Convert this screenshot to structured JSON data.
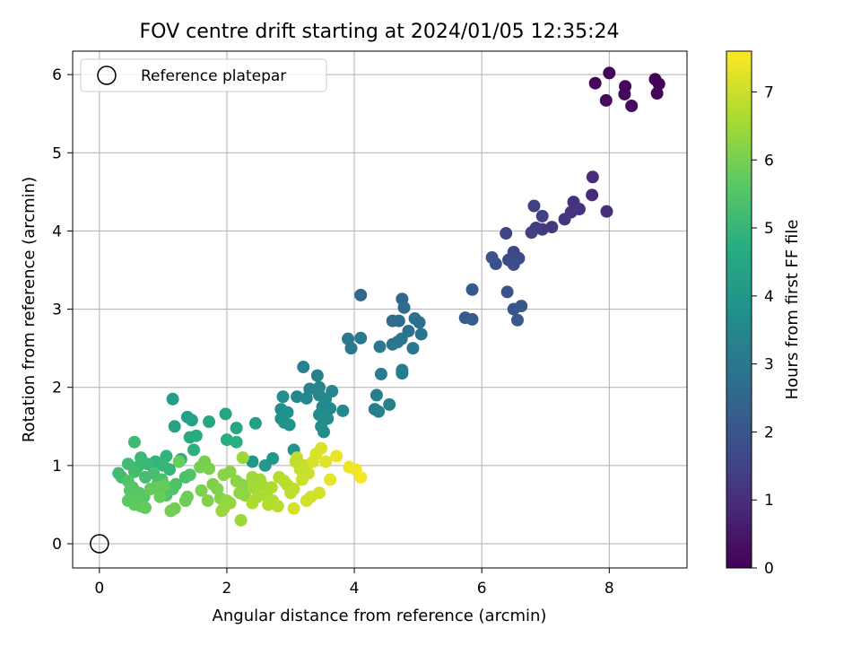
{
  "chart_data": {
    "type": "scatter",
    "title": "FOV centre drift starting at 2024/01/05 12:35:24",
    "xlabel": "Angular distance from reference (arcmin)",
    "ylabel": "Rotation from reference (arcmin)",
    "xlim": [
      -0.42,
      9.22
    ],
    "ylim": [
      -0.31,
      6.3
    ],
    "xticks": [
      0,
      2,
      4,
      6,
      8
    ],
    "yticks": [
      0,
      1,
      2,
      3,
      4,
      5,
      6
    ],
    "grid": true,
    "legend": {
      "placement": "top-left",
      "entries": [
        "Reference platepar"
      ]
    },
    "reference": {
      "x": 0,
      "y": 0
    },
    "colorbar": {
      "label": "Hours from first FF file",
      "colormap": "viridis",
      "range": [
        0,
        7.6
      ],
      "ticks": [
        0,
        1,
        2,
        3,
        4,
        5,
        6,
        7
      ]
    },
    "points": [
      [
        8.72,
        5.94,
        0.05
      ],
      [
        8.78,
        5.88,
        0.05
      ],
      [
        8.75,
        5.76,
        0.1
      ],
      [
        8.0,
        6.02,
        0.1
      ],
      [
        7.78,
        5.89,
        0.12
      ],
      [
        8.25,
        5.85,
        0.15
      ],
      [
        8.24,
        5.75,
        0.18
      ],
      [
        7.95,
        5.67,
        0.2
      ],
      [
        8.35,
        5.6,
        0.25
      ],
      [
        7.74,
        4.69,
        0.9
      ],
      [
        7.73,
        4.46,
        0.95
      ],
      [
        7.96,
        4.25,
        1.0
      ],
      [
        7.44,
        4.37,
        1.05
      ],
      [
        7.53,
        4.28,
        1.1
      ],
      [
        7.4,
        4.24,
        1.15
      ],
      [
        7.3,
        4.15,
        1.2
      ],
      [
        7.1,
        4.05,
        1.25
      ],
      [
        6.95,
        4.02,
        1.3
      ],
      [
        6.85,
        4.04,
        1.35
      ],
      [
        6.78,
        3.98,
        1.4
      ],
      [
        6.82,
        4.32,
        1.45
      ],
      [
        6.95,
        4.19,
        1.5
      ],
      [
        6.38,
        3.97,
        1.6
      ],
      [
        6.5,
        3.73,
        1.65
      ],
      [
        6.58,
        3.65,
        1.7
      ],
      [
        6.42,
        3.63,
        1.75
      ],
      [
        6.5,
        3.57,
        1.8
      ],
      [
        6.22,
        3.58,
        1.85
      ],
      [
        6.16,
        3.66,
        1.9
      ],
      [
        6.4,
        3.22,
        1.95
      ],
      [
        6.5,
        3.0,
        2.0
      ],
      [
        6.62,
        3.04,
        2.05
      ],
      [
        6.56,
        2.86,
        2.1
      ],
      [
        5.85,
        3.25,
        2.15
      ],
      [
        5.74,
        2.89,
        2.2
      ],
      [
        5.85,
        2.87,
        2.25
      ],
      [
        4.1,
        3.18,
        2.5
      ],
      [
        4.75,
        3.13,
        2.55
      ],
      [
        4.78,
        3.02,
        2.6
      ],
      [
        4.6,
        2.85,
        2.65
      ],
      [
        4.7,
        2.85,
        2.7
      ],
      [
        4.95,
        2.88,
        2.75
      ],
      [
        5.02,
        2.83,
        2.8
      ],
      [
        4.85,
        2.72,
        2.85
      ],
      [
        5.05,
        2.68,
        2.9
      ],
      [
        4.74,
        2.62,
        2.9
      ],
      [
        4.6,
        2.55,
        2.95
      ],
      [
        4.68,
        2.58,
        3.0
      ],
      [
        4.92,
        2.5,
        3.0
      ],
      [
        4.4,
        2.52,
        3.05
      ],
      [
        3.9,
        2.62,
        3.05
      ],
      [
        4.1,
        2.63,
        3.1
      ],
      [
        3.95,
        2.5,
        3.1
      ],
      [
        4.42,
        2.17,
        3.15
      ],
      [
        4.75,
        2.22,
        3.15
      ],
      [
        4.75,
        2.18,
        3.2
      ],
      [
        4.35,
        1.9,
        3.2
      ],
      [
        4.55,
        1.78,
        3.25
      ],
      [
        4.32,
        1.72,
        3.25
      ],
      [
        4.38,
        1.69,
        3.3
      ],
      [
        3.42,
        2.15,
        3.35
      ],
      [
        3.2,
        2.26,
        3.35
      ],
      [
        3.3,
        1.98,
        3.4
      ],
      [
        3.45,
        2.0,
        3.4
      ],
      [
        3.65,
        1.95,
        3.45
      ],
      [
        3.45,
        1.9,
        3.45
      ],
      [
        3.1,
        1.88,
        3.5
      ],
      [
        3.25,
        1.86,
        3.5
      ],
      [
        3.55,
        1.85,
        3.55
      ],
      [
        3.5,
        1.75,
        3.55
      ],
      [
        3.62,
        1.73,
        3.6
      ],
      [
        3.82,
        1.7,
        3.6
      ],
      [
        3.45,
        1.65,
        3.65
      ],
      [
        3.58,
        1.6,
        3.65
      ],
      [
        3.48,
        1.5,
        3.7
      ],
      [
        3.52,
        1.43,
        3.7
      ],
      [
        2.88,
        1.88,
        3.75
      ],
      [
        2.85,
        1.72,
        3.75
      ],
      [
        2.95,
        1.68,
        3.8
      ],
      [
        2.85,
        1.6,
        3.8
      ],
      [
        2.9,
        1.55,
        3.85
      ],
      [
        2.98,
        1.52,
        3.85
      ],
      [
        3.05,
        1.2,
        3.9
      ],
      [
        2.72,
        1.09,
        3.95
      ],
      [
        2.4,
        1.05,
        4.0
      ],
      [
        2.6,
        1.0,
        4.05
      ],
      [
        1.15,
        1.85,
        4.2
      ],
      [
        2.45,
        1.54,
        4.25
      ],
      [
        1.38,
        1.62,
        4.3
      ],
      [
        1.45,
        1.58,
        4.35
      ],
      [
        1.18,
        1.5,
        4.4
      ],
      [
        1.98,
        1.66,
        4.45
      ],
      [
        2.15,
        1.48,
        4.5
      ],
      [
        1.72,
        1.56,
        4.55
      ],
      [
        1.42,
        1.36,
        4.6
      ],
      [
        1.52,
        1.38,
        4.65
      ],
      [
        2.0,
        1.33,
        4.7
      ],
      [
        2.15,
        1.3,
        4.75
      ],
      [
        1.28,
        1.08,
        4.8
      ],
      [
        1.48,
        1.2,
        4.85
      ],
      [
        1.05,
        1.12,
        4.9
      ],
      [
        0.88,
        1.05,
        4.95
      ],
      [
        1.0,
        1.0,
        5.0
      ],
      [
        1.1,
        0.95,
        5.0
      ],
      [
        0.75,
        1.02,
        5.05
      ],
      [
        0.6,
        0.98,
        5.1
      ],
      [
        0.65,
        1.1,
        5.1
      ],
      [
        0.55,
        1.3,
        5.15
      ],
      [
        0.45,
        1.02,
        5.2
      ],
      [
        0.3,
        0.9,
        5.2
      ],
      [
        0.35,
        0.85,
        5.25
      ],
      [
        0.55,
        0.92,
        5.25
      ],
      [
        0.72,
        0.85,
        5.3
      ],
      [
        0.85,
        0.9,
        5.3
      ],
      [
        0.92,
        0.78,
        5.35
      ],
      [
        0.98,
        0.82,
        5.35
      ],
      [
        1.2,
        0.76,
        5.4
      ],
      [
        1.35,
        0.85,
        5.4
      ],
      [
        1.42,
        0.88,
        5.45
      ],
      [
        1.15,
        0.7,
        5.45
      ],
      [
        1.05,
        0.62,
        5.5
      ],
      [
        0.45,
        0.8,
        5.5
      ],
      [
        0.52,
        0.72,
        5.55
      ],
      [
        0.48,
        0.68,
        5.55
      ],
      [
        0.62,
        0.65,
        5.6
      ],
      [
        0.7,
        0.6,
        5.6
      ],
      [
        0.58,
        0.55,
        5.65
      ],
      [
        0.45,
        0.55,
        5.65
      ],
      [
        0.65,
        0.48,
        5.7
      ],
      [
        0.55,
        0.5,
        5.7
      ],
      [
        0.72,
        0.46,
        5.75
      ],
      [
        0.8,
        0.7,
        5.75
      ],
      [
        0.9,
        0.72,
        5.8
      ],
      [
        1.02,
        0.75,
        5.8
      ],
      [
        0.95,
        0.6,
        5.85
      ],
      [
        1.25,
        1.05,
        5.85
      ],
      [
        1.38,
        0.6,
        5.9
      ],
      [
        1.35,
        0.55,
        5.9
      ],
      [
        1.18,
        0.45,
        5.95
      ],
      [
        1.12,
        0.42,
        5.95
      ],
      [
        1.65,
        1.05,
        6.0
      ],
      [
        1.58,
        0.98,
        6.0
      ],
      [
        1.72,
        0.96,
        6.05
      ],
      [
        1.6,
        0.68,
        6.05
      ],
      [
        1.78,
        0.76,
        6.1
      ],
      [
        1.85,
        0.7,
        6.1
      ],
      [
        1.7,
        0.55,
        6.15
      ],
      [
        1.9,
        0.58,
        6.15
      ],
      [
        1.95,
        0.88,
        6.2
      ],
      [
        2.05,
        0.92,
        6.2
      ],
      [
        2.15,
        0.8,
        6.25
      ],
      [
        2.25,
        0.75,
        6.25
      ],
      [
        2.2,
        0.65,
        6.3
      ],
      [
        2.28,
        0.62,
        6.3
      ],
      [
        2.0,
        0.55,
        6.35
      ],
      [
        2.05,
        0.52,
        6.35
      ],
      [
        1.95,
        0.45,
        6.4
      ],
      [
        1.92,
        0.42,
        6.4
      ],
      [
        2.22,
        0.3,
        6.45
      ],
      [
        2.25,
        1.1,
        6.45
      ],
      [
        2.4,
        0.85,
        6.5
      ],
      [
        2.52,
        0.82,
        6.5
      ],
      [
        2.42,
        0.72,
        6.55
      ],
      [
        2.55,
        0.75,
        6.55
      ],
      [
        2.48,
        0.6,
        6.6
      ],
      [
        2.62,
        0.62,
        6.6
      ],
      [
        2.4,
        0.52,
        6.65
      ],
      [
        2.7,
        0.72,
        6.65
      ],
      [
        2.65,
        0.5,
        6.7
      ],
      [
        2.72,
        0.55,
        6.7
      ],
      [
        2.82,
        0.85,
        6.75
      ],
      [
        2.8,
        0.48,
        6.75
      ],
      [
        2.9,
        0.8,
        6.8
      ],
      [
        2.95,
        0.75,
        6.8
      ],
      [
        3.05,
        0.7,
        6.85
      ],
      [
        3.0,
        0.65,
        6.85
      ],
      [
        3.1,
        1.1,
        6.9
      ],
      [
        3.08,
        1.05,
        6.9
      ],
      [
        3.22,
        1.0,
        6.95
      ],
      [
        3.15,
        0.95,
        6.95
      ],
      [
        3.28,
        0.9,
        7.0
      ],
      [
        3.18,
        0.82,
        7.0
      ],
      [
        3.32,
        0.6,
        7.05
      ],
      [
        3.25,
        0.55,
        7.05
      ],
      [
        3.05,
        0.45,
        7.1
      ],
      [
        3.45,
        0.65,
        7.1
      ],
      [
        3.4,
        1.15,
        7.15
      ],
      [
        3.35,
        1.05,
        7.15
      ],
      [
        3.48,
        1.22,
        7.2
      ],
      [
        3.55,
        1.05,
        7.25
      ],
      [
        3.62,
        0.82,
        7.3
      ],
      [
        3.72,
        1.12,
        7.35
      ],
      [
        3.92,
        0.98,
        7.4
      ],
      [
        4.02,
        0.95,
        7.45
      ],
      [
        4.1,
        0.85,
        7.5
      ]
    ]
  }
}
